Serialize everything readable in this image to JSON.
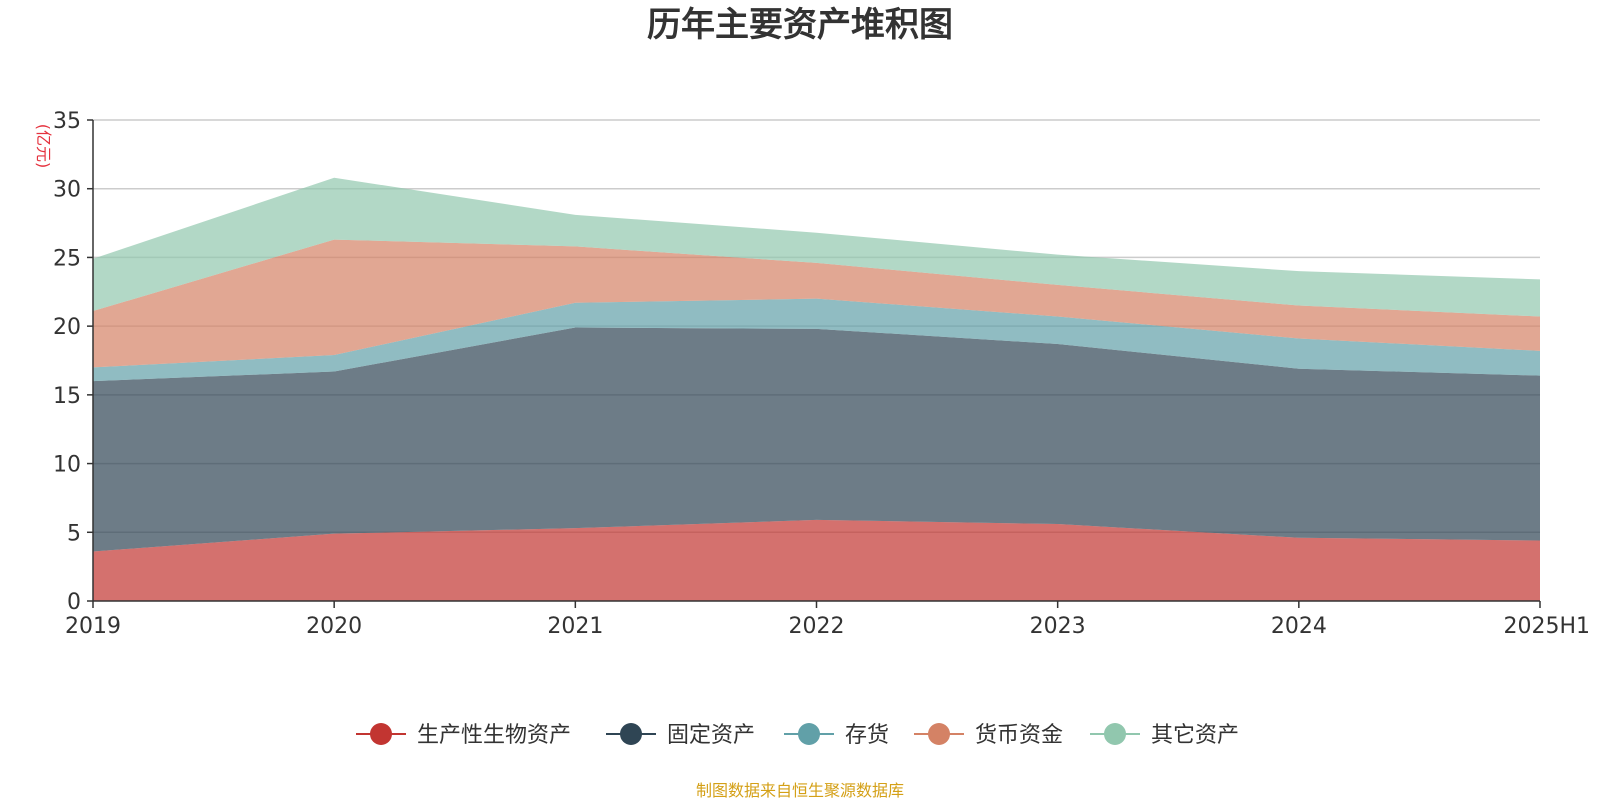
{
  "chart_data": {
    "type": "area",
    "stacked": true,
    "title": "历年主要资产堆积图",
    "ylabel": "(亿元)",
    "xlabel": "",
    "categories": [
      "2019",
      "2020",
      "2021",
      "2022",
      "2023",
      "2024",
      "2025H1"
    ],
    "ylim": [
      0,
      35
    ],
    "yticks": [
      0,
      5,
      10,
      15,
      20,
      25,
      30,
      35
    ],
    "grid": true,
    "legend_position": "bottom",
    "series": [
      {
        "name": "生产性生物资产",
        "color": "#c23531",
        "values": [
          3.6,
          4.9,
          5.3,
          5.9,
          5.6,
          4.6,
          4.4
        ]
      },
      {
        "name": "固定资产",
        "color": "#2f4554",
        "values": [
          12.4,
          11.8,
          14.6,
          13.9,
          13.1,
          12.3,
          12.0
        ]
      },
      {
        "name": "存货",
        "color": "#61a0a8",
        "values": [
          1.0,
          1.2,
          1.8,
          2.2,
          2.0,
          2.2,
          1.8
        ]
      },
      {
        "name": "货币资金",
        "color": "#d48265",
        "values": [
          4.1,
          8.4,
          4.1,
          2.6,
          2.3,
          2.4,
          2.5
        ]
      },
      {
        "name": "其它资产",
        "color": "#91c7ae",
        "values": [
          3.8,
          4.5,
          2.3,
          2.2,
          2.2,
          2.5,
          2.7
        ]
      }
    ],
    "source": "制图数据来自恒生聚源数据库",
    "source_color": "#d4a017",
    "unit_color": "#e5323e"
  }
}
